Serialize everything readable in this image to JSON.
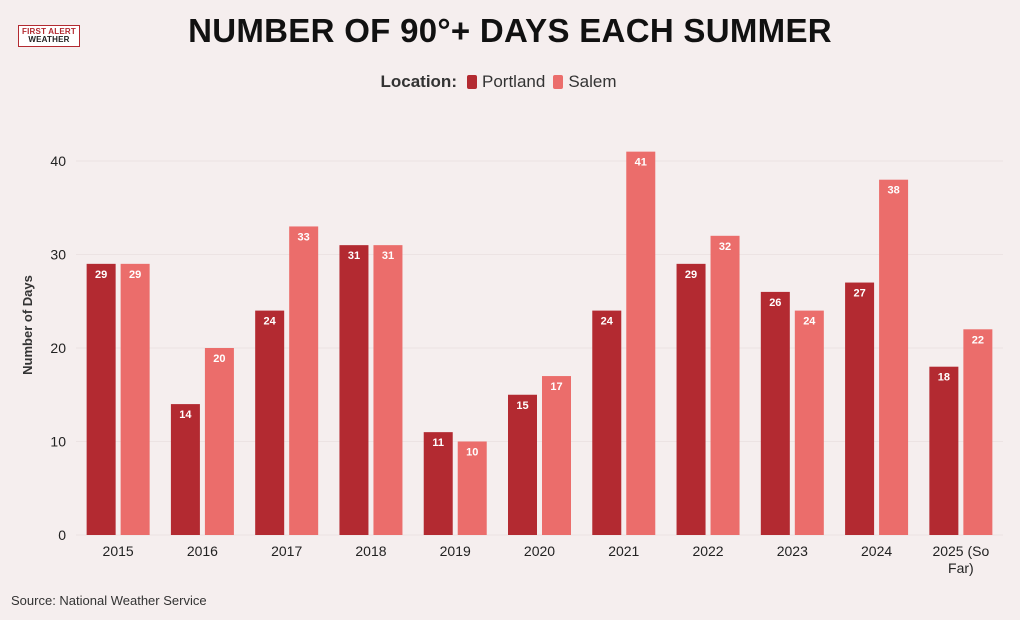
{
  "logo": {
    "line1": "FIRST ALERT",
    "line2": "WEATHER"
  },
  "legend": {
    "label": "Location:"
  },
  "source": "Source: National Weather Service",
  "colors": {
    "portland": "#b32a31",
    "salem": "#eb6d6b",
    "background": "#f5eeee",
    "grid": "#ece3e3"
  },
  "chart_data": {
    "type": "bar",
    "title": "NUMBER OF 90°+ DAYS EACH SUMMER",
    "xlabel": "",
    "ylabel": "Number of Days",
    "ylim": [
      0,
      40
    ],
    "yticks": [
      0,
      10,
      20,
      30,
      40
    ],
    "grid": true,
    "legend_position": "top-center",
    "categories": [
      "2015",
      "2016",
      "2017",
      "2018",
      "2019",
      "2020",
      "2021",
      "2022",
      "2023",
      "2024",
      "2025 (So Far)"
    ],
    "series": [
      {
        "name": "Portland",
        "values": [
          29,
          14,
          24,
          31,
          11,
          15,
          24,
          29,
          26,
          27,
          18
        ]
      },
      {
        "name": "Salem",
        "values": [
          29,
          20,
          33,
          31,
          10,
          17,
          41,
          32,
          24,
          38,
          22
        ]
      }
    ]
  }
}
